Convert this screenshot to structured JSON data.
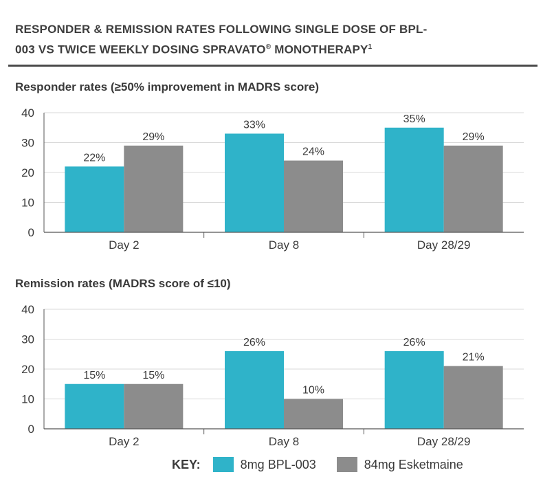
{
  "title_line1": "RESPONDER & REMISSION RATES FOLLOWING SINGLE DOSE OF BPL-",
  "title_line2": "003 VS TWICE WEEKLY DOSING SPRAVATO",
  "title_reg": "®",
  "title_line2_end": " MONOTHERAPY",
  "title_footnote": "1",
  "key_label": "KEY:",
  "colors": {
    "bpl": "#2fb3c9",
    "esk": "#8c8c8c",
    "grid": "#d8d8d8",
    "axis": "#555555"
  },
  "legend": [
    {
      "name": "8mg BPL-003",
      "color": "#2fb3c9"
    },
    {
      "name": "84mg Esketmaine",
      "color": "#8c8c8c"
    }
  ],
  "chart_data": [
    {
      "type": "bar",
      "title": "Responder rates (≥50% improvement in MADRS score)",
      "categories": [
        "Day 2",
        "Day 8",
        "Day 28/29"
      ],
      "ylim": [
        0,
        40
      ],
      "yticks": [
        0,
        10,
        20,
        30,
        40
      ],
      "grid": true,
      "series": [
        {
          "name": "8mg BPL-003",
          "values": [
            22,
            33,
            35
          ],
          "labels": [
            "22%",
            "33%",
            "35%"
          ]
        },
        {
          "name": "84mg Esketmaine",
          "values": [
            29,
            24,
            29
          ],
          "labels": [
            "29%",
            "24%",
            "29%"
          ]
        }
      ]
    },
    {
      "type": "bar",
      "title": "Remission rates (MADRS score of ≤10)",
      "categories": [
        "Day 2",
        "Day 8",
        "Day 28/29"
      ],
      "ylim": [
        0,
        40
      ],
      "yticks": [
        0,
        10,
        20,
        30,
        40
      ],
      "grid": true,
      "series": [
        {
          "name": "8mg BPL-003",
          "values": [
            15,
            26,
            26
          ],
          "labels": [
            "15%",
            "26%",
            "26%"
          ]
        },
        {
          "name": "84mg Esketmaine",
          "values": [
            15,
            10,
            21
          ],
          "labels": [
            "15%",
            "10%",
            "21%"
          ]
        }
      ]
    }
  ]
}
